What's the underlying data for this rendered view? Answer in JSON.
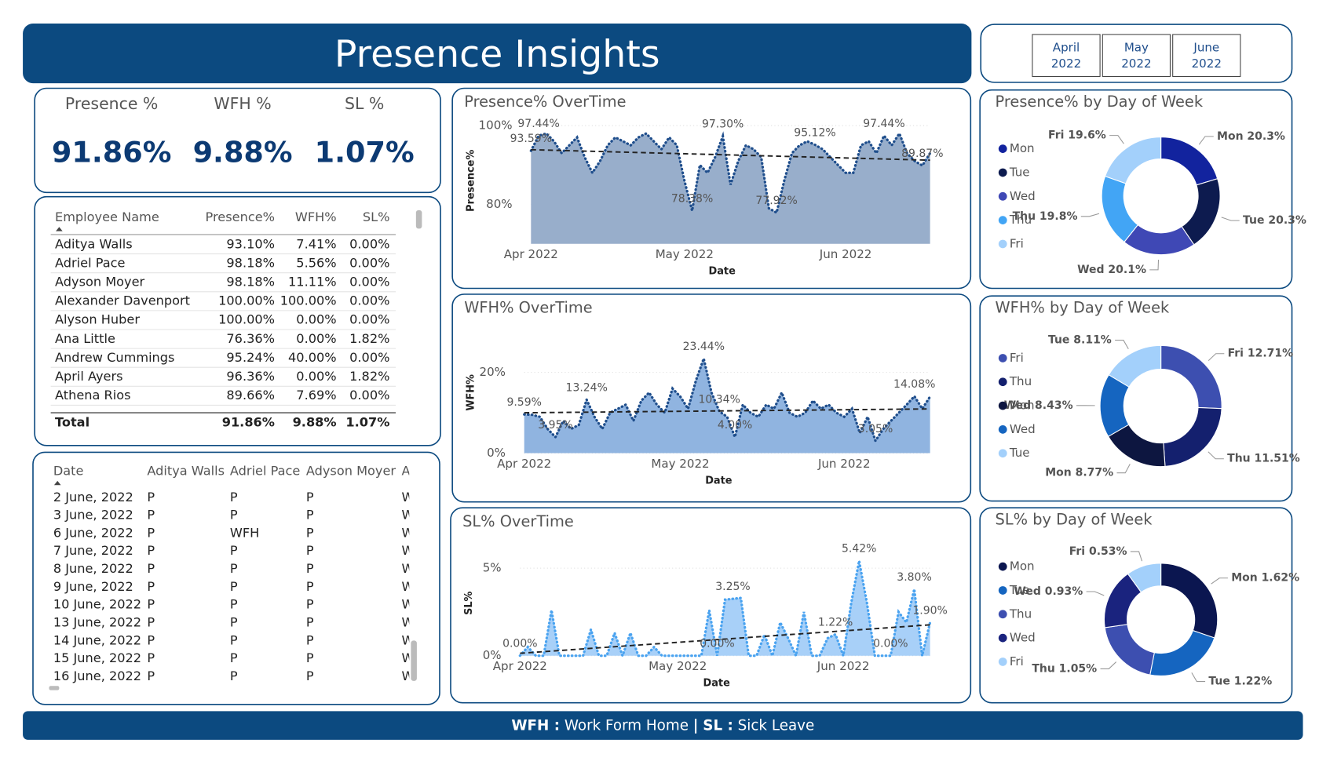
{
  "header": {
    "title": "Presence Insights"
  },
  "slicer": {
    "buttons": [
      [
        "April",
        "2022"
      ],
      [
        "May",
        "2022"
      ],
      [
        "June",
        "2022"
      ]
    ]
  },
  "kpis": [
    {
      "label": "Presence %",
      "value": "91.86%"
    },
    {
      "label": "WFH %",
      "value": "9.88%"
    },
    {
      "label": "SL %",
      "value": "1.07%"
    }
  ],
  "employee_table": {
    "headers": [
      "Employee Name",
      "Presence%",
      "WFH%",
      "SL%"
    ],
    "rows": [
      [
        "Aditya Walls",
        "93.10%",
        "7.41%",
        "0.00%"
      ],
      [
        "Adriel Pace",
        "98.18%",
        "5.56%",
        "0.00%"
      ],
      [
        "Adyson Moyer",
        "98.18%",
        "11.11%",
        "0.00%"
      ],
      [
        "Alexander Davenport",
        "100.00%",
        "100.00%",
        "0.00%"
      ],
      [
        "Alyson Huber",
        "100.00%",
        "0.00%",
        "0.00%"
      ],
      [
        "Ana Little",
        "76.36%",
        "0.00%",
        "1.82%"
      ],
      [
        "Andrew Cummings",
        "95.24%",
        "40.00%",
        "0.00%"
      ],
      [
        "April Ayers",
        "96.36%",
        "0.00%",
        "1.82%"
      ],
      [
        "Athena Rios",
        "89.66%",
        "7.69%",
        "0.00%"
      ]
    ],
    "total": [
      "Total",
      "91.86%",
      "9.88%",
      "1.07%"
    ]
  },
  "date_table": {
    "headers": [
      "Date",
      "Aditya Walls",
      "Adriel Pace",
      "Adyson Moyer",
      "A"
    ],
    "rows": [
      [
        "2 June, 2022",
        "P",
        "P",
        "P",
        "W"
      ],
      [
        "3 June, 2022",
        "P",
        "P",
        "P",
        "W"
      ],
      [
        "6 June, 2022",
        "P",
        "WFH",
        "P",
        "W"
      ],
      [
        "7 June, 2022",
        "P",
        "P",
        "P",
        "W"
      ],
      [
        "8 June, 2022",
        "P",
        "P",
        "P",
        "W"
      ],
      [
        "9 June, 2022",
        "P",
        "P",
        "P",
        "W"
      ],
      [
        "10 June, 2022",
        "P",
        "P",
        "P",
        "W"
      ],
      [
        "13 June, 2022",
        "P",
        "P",
        "P",
        "W"
      ],
      [
        "14 June, 2022",
        "P",
        "P",
        "P",
        "W"
      ],
      [
        "15 June, 2022",
        "P",
        "P",
        "P",
        "W"
      ],
      [
        "16 June, 2022",
        "P",
        "P",
        "P",
        "W"
      ]
    ]
  },
  "footer": {
    "wfh_abbr": "WFH :",
    "wfh_text": "Work Form Home",
    "sep": "|",
    "sl_abbr": "SL :",
    "sl_text": "Sick Leave"
  },
  "chart_data": [
    {
      "type": "area",
      "title": "Presence% OverTime",
      "x_label": "Date",
      "y_label": "Presence%",
      "categories": [
        "Apr 2022",
        null,
        null,
        null,
        null,
        null,
        null,
        null,
        null,
        null,
        null,
        null,
        null,
        null,
        null,
        null,
        null,
        null,
        null,
        null,
        "May 2022",
        null,
        null,
        null,
        null,
        null,
        null,
        null,
        null,
        null,
        null,
        null,
        null,
        null,
        null,
        null,
        null,
        null,
        null,
        null,
        null,
        "Jun 2022",
        null,
        null,
        null,
        null,
        null,
        null,
        null,
        null,
        null,
        null,
        null
      ],
      "values": [
        93.59,
        97.44,
        98,
        96,
        93,
        95,
        97,
        92,
        88,
        91,
        95,
        97,
        96,
        95,
        97,
        98,
        96,
        94,
        97,
        95,
        86,
        78.38,
        90,
        88,
        92,
        97.3,
        85,
        91,
        95,
        94,
        92,
        79,
        77.92,
        86,
        93,
        95,
        96,
        95.12,
        94,
        92,
        90,
        88,
        88,
        95,
        96,
        93,
        97.44,
        95,
        98,
        93,
        91,
        89.87,
        93
      ],
      "value_labels": [
        "93.59%",
        "97.44%",
        null,
        null,
        null,
        null,
        null,
        null,
        null,
        null,
        null,
        null,
        null,
        null,
        null,
        null,
        null,
        null,
        null,
        null,
        null,
        "78.38%",
        null,
        null,
        null,
        "97.30%",
        null,
        null,
        null,
        null,
        null,
        null,
        "77.92%",
        null,
        null,
        null,
        null,
        "95.12%",
        null,
        null,
        null,
        null,
        null,
        null,
        null,
        null,
        "97.44%",
        null,
        null,
        null,
        null,
        "89.87%",
        null
      ],
      "color": "#1f4e8c",
      "area_color": "#98aecb",
      "trendline": true,
      "ylim": [
        70,
        102
      ],
      "yticks": [
        {
          "value": 80,
          "label": "80%"
        },
        {
          "value": 100,
          "label": "100%"
        }
      ]
    },
    {
      "type": "area",
      "title": "WFH% OverTime",
      "x_label": "Date",
      "y_label": "WFH%",
      "categories": [
        "Apr 2022",
        null,
        null,
        null,
        null,
        null,
        null,
        null,
        null,
        null,
        null,
        null,
        null,
        null,
        null,
        null,
        null,
        null,
        null,
        null,
        "May 2022",
        null,
        null,
        null,
        null,
        null,
        null,
        null,
        null,
        null,
        null,
        null,
        null,
        null,
        null,
        null,
        null,
        null,
        null,
        null,
        null,
        "Jun 2022",
        null,
        null,
        null,
        null,
        null,
        null,
        null,
        null,
        null,
        null,
        null
      ],
      "values": [
        9.59,
        9.5,
        9,
        6,
        3.95,
        8,
        6,
        7,
        13.24,
        9,
        6,
        10,
        11,
        12,
        8,
        13,
        15,
        12,
        10,
        16,
        14,
        11,
        18,
        23.44,
        15,
        10.34,
        9,
        4.0,
        12,
        10,
        9,
        12,
        11,
        15,
        10,
        9,
        10,
        13,
        11,
        12,
        10,
        9,
        11,
        5,
        9,
        3.05,
        6,
        8,
        10,
        12,
        14.08,
        11,
        14
      ],
      "value_labels": [
        "9.59%",
        null,
        null,
        null,
        "3.95%",
        null,
        null,
        null,
        "13.24%",
        null,
        null,
        null,
        null,
        null,
        null,
        null,
        null,
        null,
        null,
        null,
        null,
        null,
        null,
        "23.44%",
        null,
        "10.34%",
        null,
        "4.00%",
        null,
        null,
        null,
        null,
        null,
        null,
        null,
        null,
        null,
        null,
        null,
        null,
        null,
        null,
        null,
        null,
        null,
        "3.05%",
        null,
        null,
        null,
        null,
        "14.08%",
        null,
        null
      ],
      "color": "#1f4e8c",
      "area_color": "#90b4e0",
      "trendline": true,
      "ylim": [
        0,
        30
      ],
      "yticks": [
        {
          "value": 0,
          "label": "0%"
        },
        {
          "value": 20,
          "label": "20%"
        }
      ]
    },
    {
      "type": "area",
      "title": "SL% OverTime",
      "x_label": "Date",
      "y_label": "SL%",
      "categories": [
        "Apr 2022",
        null,
        null,
        null,
        null,
        null,
        null,
        null,
        null,
        null,
        null,
        null,
        null,
        null,
        null,
        null,
        null,
        null,
        null,
        null,
        "May 2022",
        null,
        null,
        null,
        null,
        null,
        null,
        null,
        null,
        null,
        null,
        null,
        null,
        null,
        null,
        null,
        null,
        null,
        null,
        null,
        null,
        "Jun 2022",
        null,
        null,
        null,
        null,
        null,
        null,
        null,
        null,
        null,
        null,
        null
      ],
      "values": [
        0,
        0.5,
        0,
        0,
        2.6,
        0,
        0,
        0,
        0,
        1.5,
        0,
        0,
        1.3,
        0,
        1.3,
        0,
        0,
        0.5,
        0,
        0,
        0,
        0,
        0,
        0,
        2.6,
        0.0,
        3.2,
        3.25,
        3.3,
        0,
        0,
        1.2,
        0,
        1.9,
        1,
        0,
        2.5,
        0,
        0,
        1,
        1.22,
        0,
        3,
        5.42,
        3,
        0,
        0,
        0.0,
        2.5,
        1.9,
        3.8,
        0,
        1.9
      ],
      "value_labels": [
        "0.00%",
        null,
        null,
        null,
        null,
        null,
        null,
        null,
        null,
        null,
        null,
        null,
        null,
        null,
        null,
        null,
        null,
        null,
        null,
        null,
        null,
        null,
        null,
        null,
        null,
        "0.00%",
        null,
        "3.25%",
        null,
        null,
        null,
        null,
        null,
        null,
        null,
        null,
        null,
        null,
        null,
        null,
        "1.22%",
        null,
        null,
        "5.42%",
        null,
        null,
        null,
        "0.00%",
        null,
        null,
        "3.80%",
        null,
        "1.90%"
      ],
      "color": "#4aa3f0",
      "area_color": "#a8d0f8",
      "trendline": true,
      "ylim": [
        0,
        6
      ],
      "yticks": [
        {
          "value": 0,
          "label": "0%"
        },
        {
          "value": 5,
          "label": "5%"
        }
      ]
    },
    {
      "type": "donut",
      "title": "Presence% by Day of Week",
      "categories": [
        "Mon",
        "Tue",
        "Wed",
        "Thu",
        "Fri"
      ],
      "values": [
        20.3,
        20.3,
        20.1,
        19.8,
        19.6
      ],
      "value_labels": [
        "20.3%",
        "20.3%",
        "20.1%",
        "19.8%",
        "19.6%"
      ],
      "colors": [
        "#12239e",
        "#0d1b4f",
        "#3f48b5",
        "#42a5f5",
        "#a3d0fb"
      ]
    },
    {
      "type": "donut",
      "title": "WFH% by Day of Week",
      "categories": [
        "Fri",
        "Thu",
        "Mon",
        "Wed",
        "Tue"
      ],
      "values": [
        12.71,
        11.51,
        8.77,
        8.43,
        8.11
      ],
      "value_labels": [
        "12.71%",
        "11.51%",
        "8.77%",
        "8.43%",
        "8.11%"
      ],
      "colors": [
        "#3d4fb0",
        "#14206e",
        "#0d1640",
        "#1565c0",
        "#a3d0fb"
      ]
    },
    {
      "type": "donut",
      "title": "SL% by Day of Week",
      "categories": [
        "Mon",
        "Tue",
        "Thu",
        "Wed",
        "Fri"
      ],
      "values": [
        1.62,
        1.22,
        1.05,
        0.93,
        0.53
      ],
      "value_labels": [
        "1.62%",
        "1.22%",
        "1.05%",
        "0.93%",
        "0.53%"
      ],
      "colors": [
        "#0b1650",
        "#1565c0",
        "#3d4fb0",
        "#1a237e",
        "#a3d0fb"
      ]
    }
  ]
}
